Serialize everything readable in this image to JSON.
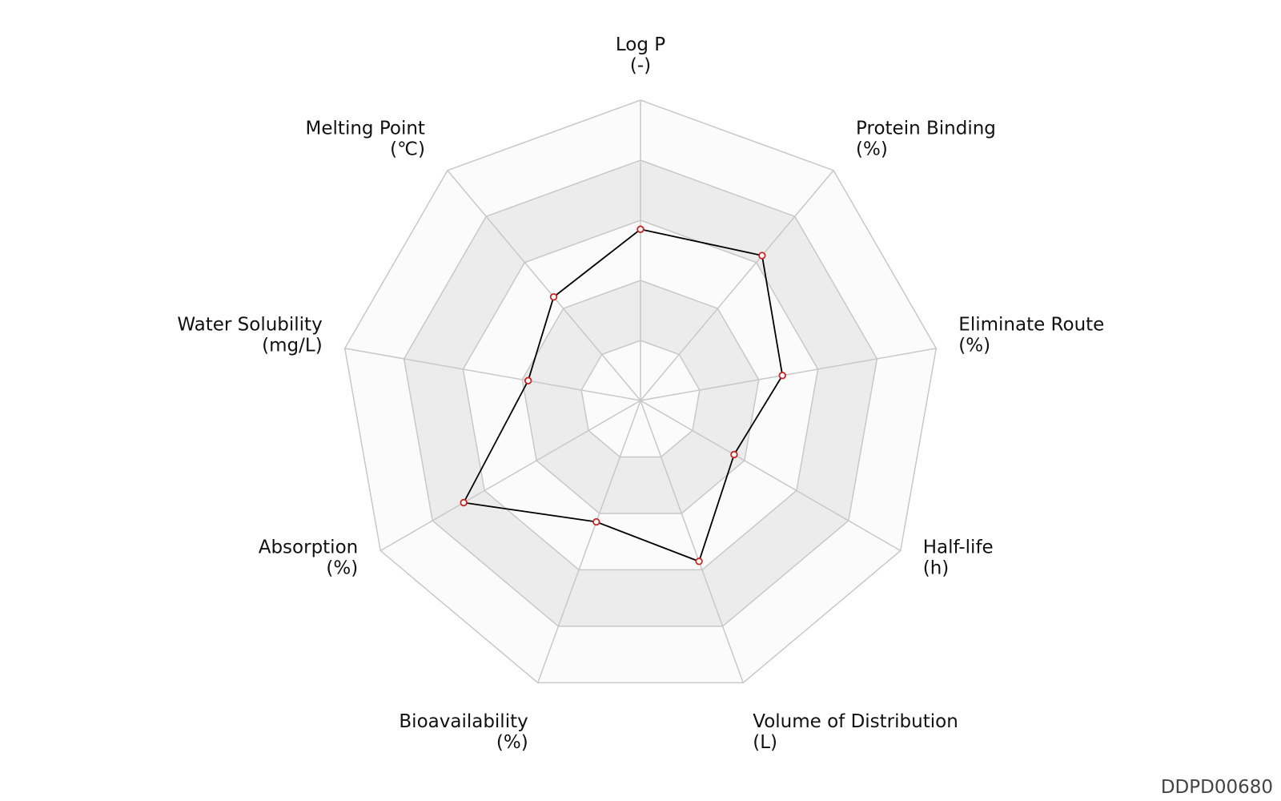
{
  "chart_data": {
    "type": "radar",
    "axes": [
      {
        "name": "Log P",
        "unit": "(-)",
        "value": 0.57
      },
      {
        "name": "Protein Binding",
        "unit": "(%)",
        "value": 0.63
      },
      {
        "name": "Eliminate Route",
        "unit": "(%)",
        "value": 0.48
      },
      {
        "name": "Half-life",
        "unit": "(h)",
        "value": 0.36
      },
      {
        "name": "Volume of Distribution",
        "unit": "(L)",
        "value": 0.57
      },
      {
        "name": "Bioavailability",
        "unit": "(%)",
        "value": 0.43
      },
      {
        "name": "Absorption",
        "unit": "(%)",
        "value": 0.68
      },
      {
        "name": "Water Solubility",
        "unit": "(mg/L)",
        "value": 0.38
      },
      {
        "name": "Melting Point",
        "unit": "(℃)",
        "value": 0.45
      }
    ],
    "rings": 5,
    "range": [
      0,
      1
    ],
    "grid": true,
    "legend": "none",
    "colors": {
      "line": "#000000",
      "point_stroke": "#c62828",
      "point_fill": "#ffffff",
      "grid": "#c8c8c8",
      "band_light": "#fbfbfb",
      "band_dark": "#ececec"
    }
  },
  "footer": {
    "code": "DDPD00680"
  }
}
